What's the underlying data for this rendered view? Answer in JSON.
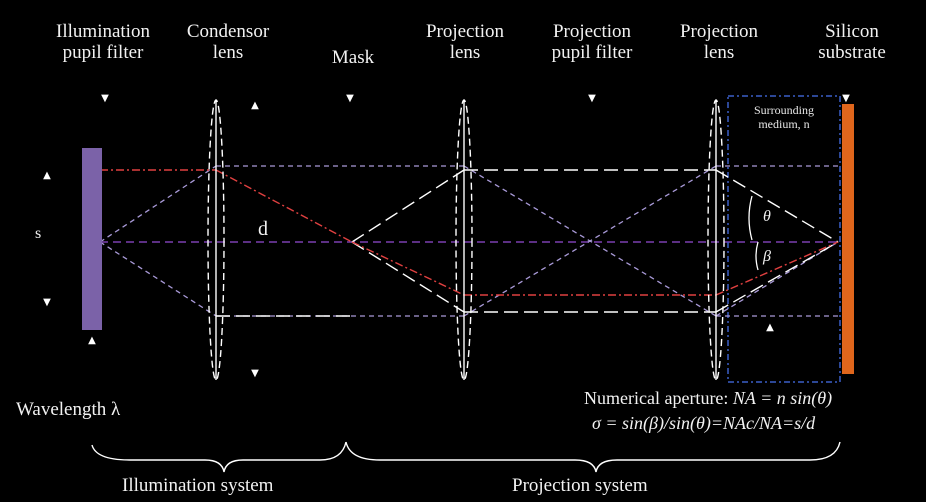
{
  "labels": {
    "illumination_filter": [
      "Illumination",
      "pupil filter"
    ],
    "condensor_lens": [
      "Condensor",
      "lens"
    ],
    "mask": "Mask",
    "projection_lens_1": [
      "Projection",
      "lens"
    ],
    "projection_pupil_filter": [
      "Projection",
      "pupil filter"
    ],
    "projection_lens_2": [
      "Projection",
      "lens"
    ],
    "silicon_substrate": [
      "Silicon",
      "substrate"
    ],
    "surrounding_medium": [
      "Surrounding",
      "medium, n"
    ],
    "s": "s",
    "d": "d",
    "theta": "θ",
    "beta": "β",
    "wavelength": "Wavelength λ",
    "na_line1_prefix": "Numerical aperture: ",
    "na_line1_formula": "NA = n sin(θ)",
    "na_line2_formula": "σ = sin(β)/sin(θ)=NAc/NA=s/d",
    "illumination_system": "Illumination system",
    "projection_system": "Projection system"
  },
  "colors": {
    "filter_bar": "#7b62a8",
    "substrate": "#e0661c",
    "axis": "#7a3fb0",
    "red_ray": "#e04040",
    "purple_ray": "#a99ad8",
    "white_ray": "#ffffff",
    "medium_box": "#3a5fc8",
    "lens": "#ffffff"
  }
}
